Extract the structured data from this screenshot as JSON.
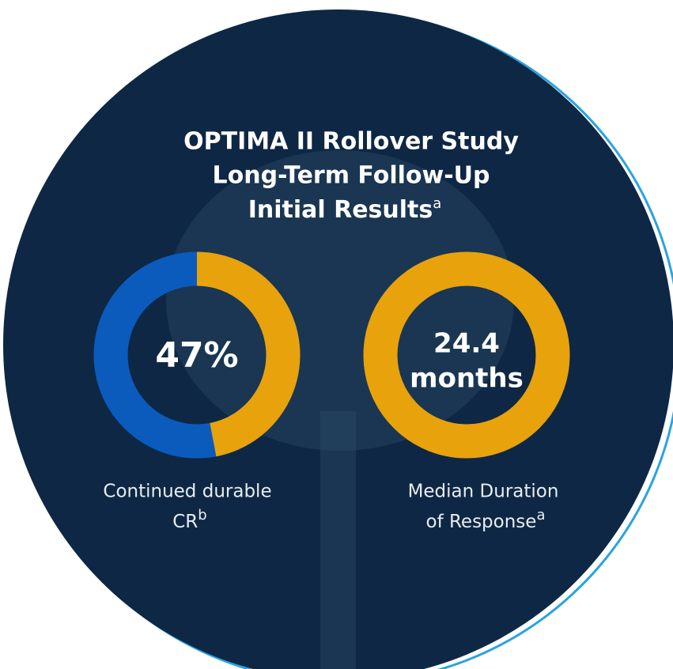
{
  "title": {
    "lines": [
      "OPTIMA II Rollover Study",
      "Long-Term Follow-Up",
      "Initial Results"
    ],
    "superscript": "a"
  },
  "stats": [
    {
      "value": 47,
      "value_label": "47%",
      "color": "#e8a20c",
      "rest_color": "#0b5bbd",
      "label": "Continued durable",
      "label_line2": "CR",
      "superscript": "b"
    },
    {
      "value_label": "24.4",
      "unit": "months",
      "color": "#e8a20c",
      "label": "Median Duration",
      "label_line2": "of Response",
      "superscript": "a"
    }
  ]
}
